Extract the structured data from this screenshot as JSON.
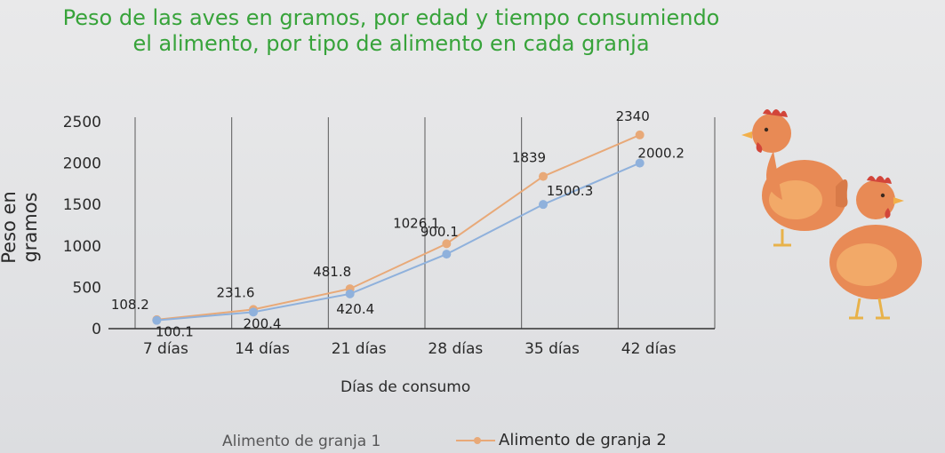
{
  "title_line1": "Peso de las aves en gramos, por edad y tiempo consumiendo",
  "title_line2": "el alimento, por tipo de alimento en cada granja",
  "chart_data": {
    "type": "line",
    "title": "Peso de las aves en gramos, por edad y tiempo consumiendo el alimento, por tipo de alimento en cada granja",
    "xlabel": "Días de consumo",
    "ylabel": "Peso en gramos",
    "categories": [
      "7 días",
      "14 días",
      "21 días",
      "28 días",
      "35 días",
      "42 días"
    ],
    "yticks": [
      "0",
      "500",
      "1000",
      "1500",
      "2000",
      "2500"
    ],
    "ylim": [
      0,
      2500
    ],
    "grid": "vertical",
    "series": [
      {
        "name": "Alimento de granja 1",
        "color": "#e8a978",
        "values": [
          108.2,
          231.6,
          481.8,
          1026.1,
          1839,
          2340
        ],
        "labels": [
          "108.2",
          "231.6",
          "481.8",
          "1026.1",
          "1839",
          "2340"
        ]
      },
      {
        "name": "Alimento de granja 2",
        "color": "#8fb1dc",
        "values": [
          100.1,
          200.4,
          420.4,
          900.1,
          1500.3,
          2000.2
        ],
        "labels": [
          "100.1",
          "200.4",
          "420.4",
          "900.1",
          "1500.3",
          "2000.2"
        ]
      }
    ],
    "legend": "bottom"
  },
  "legend_left_text": "Alimento de granja 1",
  "legend_right_text": "Alimento de granja 2",
  "illustration_icon": "hens-icon"
}
